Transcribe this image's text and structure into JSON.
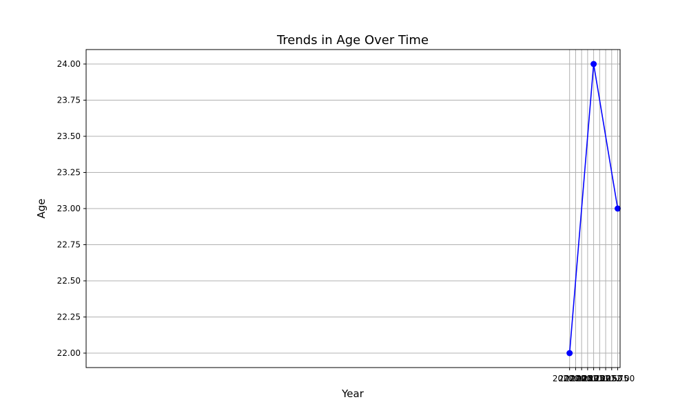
{
  "chart_data": {
    "type": "line",
    "title": "Trends in Age Over Time",
    "xlabel": "Year",
    "ylabel": "Age",
    "xlim": [
      1999.9,
      2022.1
    ],
    "ylim": [
      21.9,
      24.1
    ],
    "x_ticks": [
      2020.0,
      2020.25,
      2020.5,
      2020.75,
      2021.0,
      2021.25,
      2021.5,
      2021.75,
      2022.0
    ],
    "x_tick_labels": [
      "2020.00",
      "2020.25",
      "2020.50",
      "2020.75",
      "2021.00",
      "2021.25",
      "2021.50",
      "2021.75",
      "2022.00"
    ],
    "y_ticks": [
      22.0,
      22.25,
      22.5,
      22.75,
      23.0,
      23.25,
      23.5,
      23.75,
      24.0
    ],
    "y_tick_labels": [
      "22.00",
      "22.25",
      "22.50",
      "22.75",
      "23.00",
      "23.25",
      "23.50",
      "23.75",
      "24.00"
    ],
    "grid": true,
    "series": [
      {
        "x": [
          2020,
          2021,
          2022
        ],
        "y": [
          22,
          24,
          23
        ],
        "color": "#0000ff",
        "marker": "circle"
      }
    ]
  }
}
